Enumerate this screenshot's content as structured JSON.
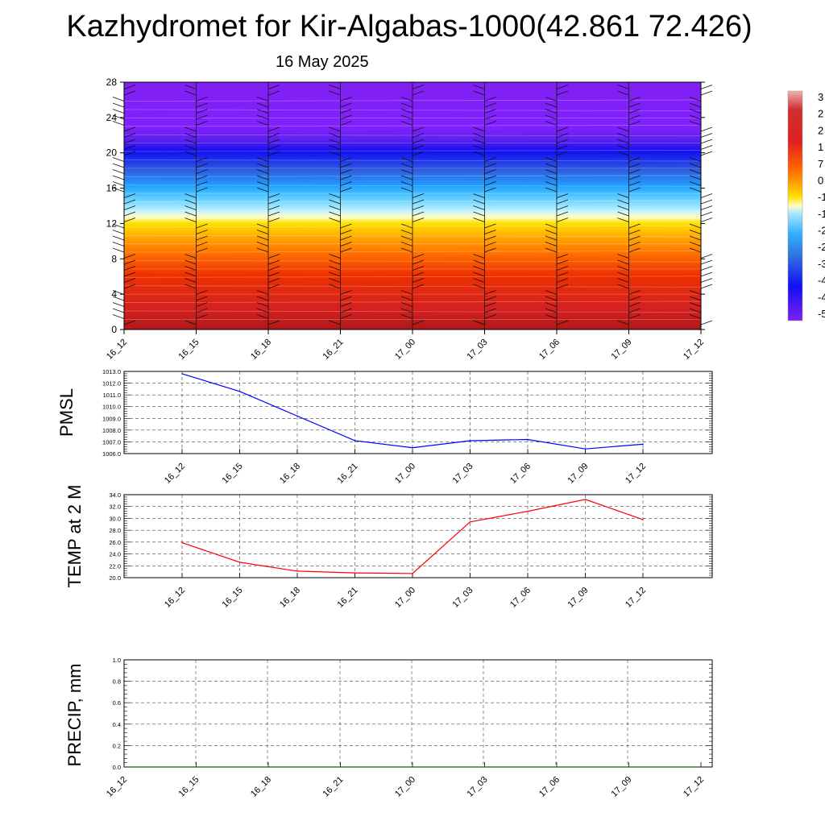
{
  "header": {
    "title": "Kazhydromet for Kir-Algabas-1000(42.861 72.426)",
    "date": "16 May 2025"
  },
  "time_labels": [
    "16_12",
    "16_15",
    "16_18",
    "16_21",
    "17_00",
    "17_03",
    "17_06",
    "17_09",
    "17_12"
  ],
  "colors": {
    "pmsl_line": "#0000ff",
    "temp_line": "#ff0000",
    "precip_line": "#006400"
  },
  "chart_data": [
    {
      "type": "heatmap",
      "title": "",
      "ylabel": "",
      "x": [
        "16_12",
        "16_15",
        "16_18",
        "16_21",
        "17_00",
        "17_03",
        "17_06",
        "17_09",
        "17_12"
      ],
      "ylim": [
        0,
        28
      ],
      "yticks": [
        0,
        4,
        8,
        12,
        16,
        20,
        24,
        28
      ],
      "colorbar_labels": [
        "3",
        "2",
        "2",
        "1",
        "7",
        "0",
        "-1",
        "-1",
        "-2",
        "-2",
        "-3",
        "-4",
        "-4",
        "-5"
      ],
      "overlay": "wind barbs",
      "legend_position": "right"
    },
    {
      "type": "line",
      "ylabel": "PMSL",
      "x": [
        "16_12",
        "16_15",
        "16_18",
        "16_21",
        "17_00",
        "17_03",
        "17_06",
        "17_09",
        "17_12"
      ],
      "values": [
        1012.8,
        1011.3,
        1009.2,
        1007.1,
        1006.5,
        1007.1,
        1007.2,
        1006.4,
        1006.8
      ],
      "ylim": [
        1006.0,
        1013.0
      ],
      "yticks": [
        "1006.0",
        "1007.0",
        "1008.0",
        "1009.0",
        "1010.0",
        "1011.0",
        "1012.0",
        "1013.0"
      ],
      "grid": true
    },
    {
      "type": "line",
      "ylabel": "TEMP at 2 M",
      "x": [
        "16_12",
        "16_15",
        "16_18",
        "16_21",
        "17_00",
        "17_03",
        "17_06",
        "17_09",
        "17_12"
      ],
      "values": [
        25.9,
        22.6,
        21.1,
        20.8,
        20.7,
        29.4,
        31.2,
        33.2,
        29.8
      ],
      "ylim": [
        20.0,
        34.0
      ],
      "yticks": [
        "20.0",
        "22.0",
        "24.0",
        "26.0",
        "28.0",
        "30.0",
        "32.0",
        "34.0"
      ],
      "grid": true
    },
    {
      "type": "line",
      "ylabel": "PRECIP, mm",
      "x": [
        "16_12",
        "16_15",
        "16_18",
        "16_21",
        "17_00",
        "17_03",
        "17_06",
        "17_09",
        "17_12"
      ],
      "values": [
        0,
        0,
        0,
        0,
        0,
        0,
        0,
        0,
        0
      ],
      "ylim": [
        0.0,
        1.0
      ],
      "yticks": [
        "0.0",
        "0.2",
        "0.4",
        "0.6",
        "0.8",
        "1.0"
      ],
      "grid": true
    }
  ]
}
